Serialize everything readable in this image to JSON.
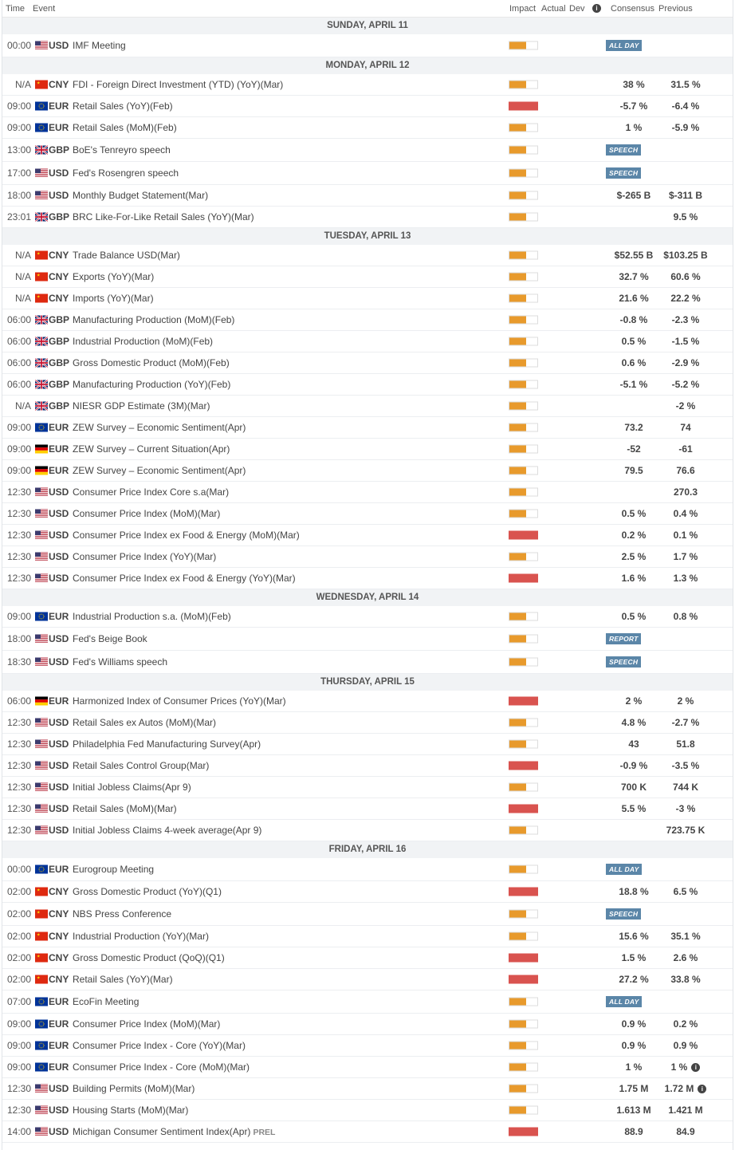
{
  "header": {
    "time": "Time",
    "event": "Event",
    "impact": "Impact",
    "actual": "Actual",
    "dev": "Dev",
    "consensus": "Consensus",
    "previous": "Previous",
    "info_icon": "info-icon"
  },
  "flags": {
    "USD": "flag-us",
    "CNY": "flag-cn",
    "EUR": "flag-eu",
    "GBP": "flag-gb",
    "DE": "flag-de"
  },
  "colors": {
    "impact_medium": "#e89a2c",
    "impact_high": "#d9534f",
    "badge": "#5b86a8",
    "day_bg": "#f1f3f5"
  },
  "days": [
    {
      "label": "SUNDAY, APRIL 11",
      "events": [
        {
          "time": "00:00",
          "flag": "USD",
          "currency": "USD",
          "event": "IMF Meeting",
          "impact": "medium",
          "badge": "ALL DAY"
        }
      ]
    },
    {
      "label": "MONDAY, APRIL 12",
      "events": [
        {
          "time": "N/A",
          "flag": "CNY",
          "currency": "CNY",
          "event": "FDI - Foreign Direct Investment (YTD) (YoY)(Mar)",
          "impact": "medium",
          "consensus": "38 %",
          "previous": "31.5 %"
        },
        {
          "time": "09:00",
          "flag": "EUR",
          "currency": "EUR",
          "event": "Retail Sales (YoY)(Feb)",
          "impact": "high",
          "consensus": "-5.7 %",
          "previous": "-6.4 %"
        },
        {
          "time": "09:00",
          "flag": "EUR",
          "currency": "EUR",
          "event": "Retail Sales (MoM)(Feb)",
          "impact": "medium",
          "consensus": "1 %",
          "previous": "-5.9 %"
        },
        {
          "time": "13:00",
          "flag": "GBP",
          "currency": "GBP",
          "event": "BoE's Tenreyro speech",
          "impact": "medium",
          "badge": "SPEECH"
        },
        {
          "time": "17:00",
          "flag": "USD",
          "currency": "USD",
          "event": "Fed's Rosengren speech",
          "impact": "medium",
          "badge": "SPEECH"
        },
        {
          "time": "18:00",
          "flag": "USD",
          "currency": "USD",
          "event": "Monthly Budget Statement(Mar)",
          "impact": "medium",
          "consensus": "$-265 B",
          "previous": "$-311 B"
        },
        {
          "time": "23:01",
          "flag": "GBP",
          "currency": "GBP",
          "event": "BRC Like-For-Like Retail Sales (YoY)(Mar)",
          "impact": "medium",
          "previous": "9.5 %"
        }
      ]
    },
    {
      "label": "TUESDAY, APRIL 13",
      "events": [
        {
          "time": "N/A",
          "flag": "CNY",
          "currency": "CNY",
          "event": "Trade Balance USD(Mar)",
          "impact": "medium",
          "consensus": "$52.55 B",
          "previous": "$103.25 B"
        },
        {
          "time": "N/A",
          "flag": "CNY",
          "currency": "CNY",
          "event": "Exports (YoY)(Mar)",
          "impact": "medium",
          "consensus": "32.7 %",
          "previous": "60.6 %"
        },
        {
          "time": "N/A",
          "flag": "CNY",
          "currency": "CNY",
          "event": "Imports (YoY)(Mar)",
          "impact": "medium",
          "consensus": "21.6 %",
          "previous": "22.2 %"
        },
        {
          "time": "06:00",
          "flag": "GBP",
          "currency": "GBP",
          "event": "Manufacturing Production (MoM)(Feb)",
          "impact": "medium",
          "consensus": "-0.8 %",
          "previous": "-2.3 %"
        },
        {
          "time": "06:00",
          "flag": "GBP",
          "currency": "GBP",
          "event": "Industrial Production (MoM)(Feb)",
          "impact": "medium",
          "consensus": "0.5 %",
          "previous": "-1.5 %"
        },
        {
          "time": "06:00",
          "flag": "GBP",
          "currency": "GBP",
          "event": "Gross Domestic Product (MoM)(Feb)",
          "impact": "medium",
          "consensus": "0.6 %",
          "previous": "-2.9 %"
        },
        {
          "time": "06:00",
          "flag": "GBP",
          "currency": "GBP",
          "event": "Manufacturing Production (YoY)(Feb)",
          "impact": "medium",
          "consensus": "-5.1 %",
          "previous": "-5.2 %"
        },
        {
          "time": "N/A",
          "flag": "GBP",
          "currency": "GBP",
          "event": "NIESR GDP Estimate (3M)(Mar)",
          "impact": "medium",
          "previous": "-2 %"
        },
        {
          "time": "09:00",
          "flag": "EUR",
          "currency": "EUR",
          "event": "ZEW Survey – Economic Sentiment(Apr)",
          "impact": "medium",
          "consensus": "73.2",
          "previous": "74"
        },
        {
          "time": "09:00",
          "flag": "DE",
          "currency": "EUR",
          "event": "ZEW Survey – Current Situation(Apr)",
          "impact": "medium",
          "consensus": "-52",
          "previous": "-61"
        },
        {
          "time": "09:00",
          "flag": "DE",
          "currency": "EUR",
          "event": "ZEW Survey – Economic Sentiment(Apr)",
          "impact": "medium",
          "consensus": "79.5",
          "previous": "76.6"
        },
        {
          "time": "12:30",
          "flag": "USD",
          "currency": "USD",
          "event": "Consumer Price Index Core s.a(Mar)",
          "impact": "medium",
          "previous": "270.3"
        },
        {
          "time": "12:30",
          "flag": "USD",
          "currency": "USD",
          "event": "Consumer Price Index (MoM)(Mar)",
          "impact": "medium",
          "consensus": "0.5 %",
          "previous": "0.4 %"
        },
        {
          "time": "12:30",
          "flag": "USD",
          "currency": "USD",
          "event": "Consumer Price Index ex Food & Energy (MoM)(Mar)",
          "impact": "high",
          "consensus": "0.2 %",
          "previous": "0.1 %"
        },
        {
          "time": "12:30",
          "flag": "USD",
          "currency": "USD",
          "event": "Consumer Price Index (YoY)(Mar)",
          "impact": "medium",
          "consensus": "2.5 %",
          "previous": "1.7 %"
        },
        {
          "time": "12:30",
          "flag": "USD",
          "currency": "USD",
          "event": "Consumer Price Index ex Food & Energy (YoY)(Mar)",
          "impact": "high",
          "consensus": "1.6 %",
          "previous": "1.3 %"
        }
      ]
    },
    {
      "label": "WEDNESDAY, APRIL 14",
      "events": [
        {
          "time": "09:00",
          "flag": "EUR",
          "currency": "EUR",
          "event": "Industrial Production s.a. (MoM)(Feb)",
          "impact": "medium",
          "consensus": "0.5 %",
          "previous": "0.8 %"
        },
        {
          "time": "18:00",
          "flag": "USD",
          "currency": "USD",
          "event": "Fed's Beige Book",
          "impact": "medium",
          "badge": "REPORT"
        },
        {
          "time": "18:30",
          "flag": "USD",
          "currency": "USD",
          "event": "Fed's Williams speech",
          "impact": "medium",
          "badge": "SPEECH"
        }
      ]
    },
    {
      "label": "THURSDAY, APRIL 15",
      "events": [
        {
          "time": "06:00",
          "flag": "DE",
          "currency": "EUR",
          "event": "Harmonized Index of Consumer Prices (YoY)(Mar)",
          "impact": "high",
          "consensus": "2 %",
          "previous": "2 %"
        },
        {
          "time": "12:30",
          "flag": "USD",
          "currency": "USD",
          "event": "Retail Sales ex Autos (MoM)(Mar)",
          "impact": "medium",
          "consensus": "4.8 %",
          "previous": "-2.7 %"
        },
        {
          "time": "12:30",
          "flag": "USD",
          "currency": "USD",
          "event": "Philadelphia Fed Manufacturing Survey(Apr)",
          "impact": "medium",
          "consensus": "43",
          "previous": "51.8"
        },
        {
          "time": "12:30",
          "flag": "USD",
          "currency": "USD",
          "event": "Retail Sales Control Group(Mar)",
          "impact": "high",
          "consensus": "-0.9 %",
          "previous": "-3.5 %"
        },
        {
          "time": "12:30",
          "flag": "USD",
          "currency": "USD",
          "event": "Initial Jobless Claims(Apr 9)",
          "impact": "medium",
          "consensus": "700 K",
          "previous": "744 K"
        },
        {
          "time": "12:30",
          "flag": "USD",
          "currency": "USD",
          "event": "Retail Sales (MoM)(Mar)",
          "impact": "high",
          "consensus": "5.5 %",
          "previous": "-3 %"
        },
        {
          "time": "12:30",
          "flag": "USD",
          "currency": "USD",
          "event": "Initial Jobless Claims 4-week average(Apr 9)",
          "impact": "medium",
          "previous": "723.75 K"
        }
      ]
    },
    {
      "label": "FRIDAY, APRIL 16",
      "events": [
        {
          "time": "00:00",
          "flag": "EUR",
          "currency": "EUR",
          "event": "Eurogroup Meeting",
          "impact": "medium",
          "badge": "ALL DAY"
        },
        {
          "time": "02:00",
          "flag": "CNY",
          "currency": "CNY",
          "event": "Gross Domestic Product (YoY)(Q1)",
          "impact": "high",
          "consensus": "18.8 %",
          "previous": "6.5 %"
        },
        {
          "time": "02:00",
          "flag": "CNY",
          "currency": "CNY",
          "event": "NBS Press Conference",
          "impact": "medium",
          "badge": "SPEECH"
        },
        {
          "time": "02:00",
          "flag": "CNY",
          "currency": "CNY",
          "event": "Industrial Production (YoY)(Mar)",
          "impact": "medium",
          "consensus": "15.6 %",
          "previous": "35.1 %"
        },
        {
          "time": "02:00",
          "flag": "CNY",
          "currency": "CNY",
          "event": "Gross Domestic Product (QoQ)(Q1)",
          "impact": "high",
          "consensus": "1.5 %",
          "previous": "2.6 %"
        },
        {
          "time": "02:00",
          "flag": "CNY",
          "currency": "CNY",
          "event": "Retail Sales (YoY)(Mar)",
          "impact": "high",
          "consensus": "27.2 %",
          "previous": "33.8 %"
        },
        {
          "time": "07:00",
          "flag": "EUR",
          "currency": "EUR",
          "event": "EcoFin Meeting",
          "impact": "medium",
          "badge": "ALL DAY"
        },
        {
          "time": "09:00",
          "flag": "EUR",
          "currency": "EUR",
          "event": "Consumer Price Index (MoM)(Mar)",
          "impact": "medium",
          "consensus": "0.9 %",
          "previous": "0.2 %"
        },
        {
          "time": "09:00",
          "flag": "EUR",
          "currency": "EUR",
          "event": "Consumer Price Index - Core (YoY)(Mar)",
          "impact": "medium",
          "consensus": "0.9 %",
          "previous": "0.9 %"
        },
        {
          "time": "09:00",
          "flag": "EUR",
          "currency": "EUR",
          "event": "Consumer Price Index - Core (MoM)(Mar)",
          "impact": "medium",
          "consensus": "1 %",
          "previous": "1 %",
          "previous_info": true
        },
        {
          "time": "12:30",
          "flag": "USD",
          "currency": "USD",
          "event": "Building Permits (MoM)(Mar)",
          "impact": "medium",
          "consensus": "1.75 M",
          "previous": "1.72 M",
          "previous_info": true
        },
        {
          "time": "12:30",
          "flag": "USD",
          "currency": "USD",
          "event": "Housing Starts (MoM)(Mar)",
          "impact": "medium",
          "consensus": "1.613 M",
          "previous": "1.421 M"
        },
        {
          "time": "14:00",
          "flag": "USD",
          "currency": "USD",
          "event": "Michigan Consumer Sentiment Index(Apr)",
          "tag": "PREL",
          "impact": "high",
          "consensus": "88.9",
          "previous": "84.9"
        }
      ]
    }
  ]
}
